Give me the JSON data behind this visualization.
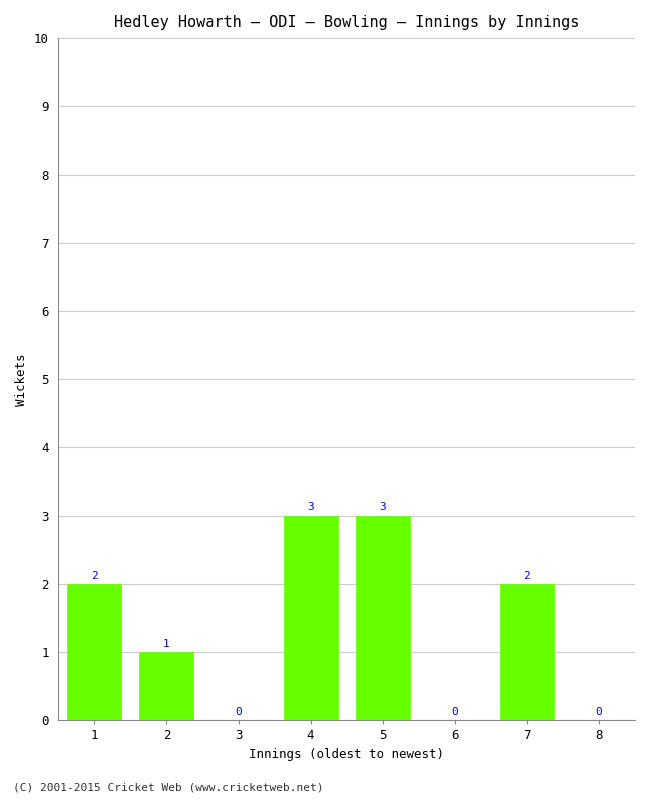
{
  "title": "Hedley Howarth – ODI – Bowling – Innings by Innings",
  "xlabel": "Innings (oldest to newest)",
  "ylabel": "Wickets",
  "categories": [
    1,
    2,
    3,
    4,
    5,
    6,
    7,
    8
  ],
  "values": [
    2,
    1,
    0,
    3,
    3,
    0,
    2,
    0
  ],
  "bar_color": "#66ff00",
  "bar_edge_color": "#66ff00",
  "ylim": [
    0,
    10
  ],
  "yticks": [
    0,
    1,
    2,
    3,
    4,
    5,
    6,
    7,
    8,
    9,
    10
  ],
  "background_color": "#ffffff",
  "plot_bg_color": "#ffffff",
  "title_fontsize": 11,
  "axis_label_fontsize": 9,
  "tick_fontsize": 9,
  "annotation_color": "#0000cc",
  "annotation_fontsize": 8,
  "footer": "(C) 2001-2015 Cricket Web (www.cricketweb.net)",
  "footer_fontsize": 8,
  "grid_color": "#cccccc",
  "spine_color": "#888888"
}
